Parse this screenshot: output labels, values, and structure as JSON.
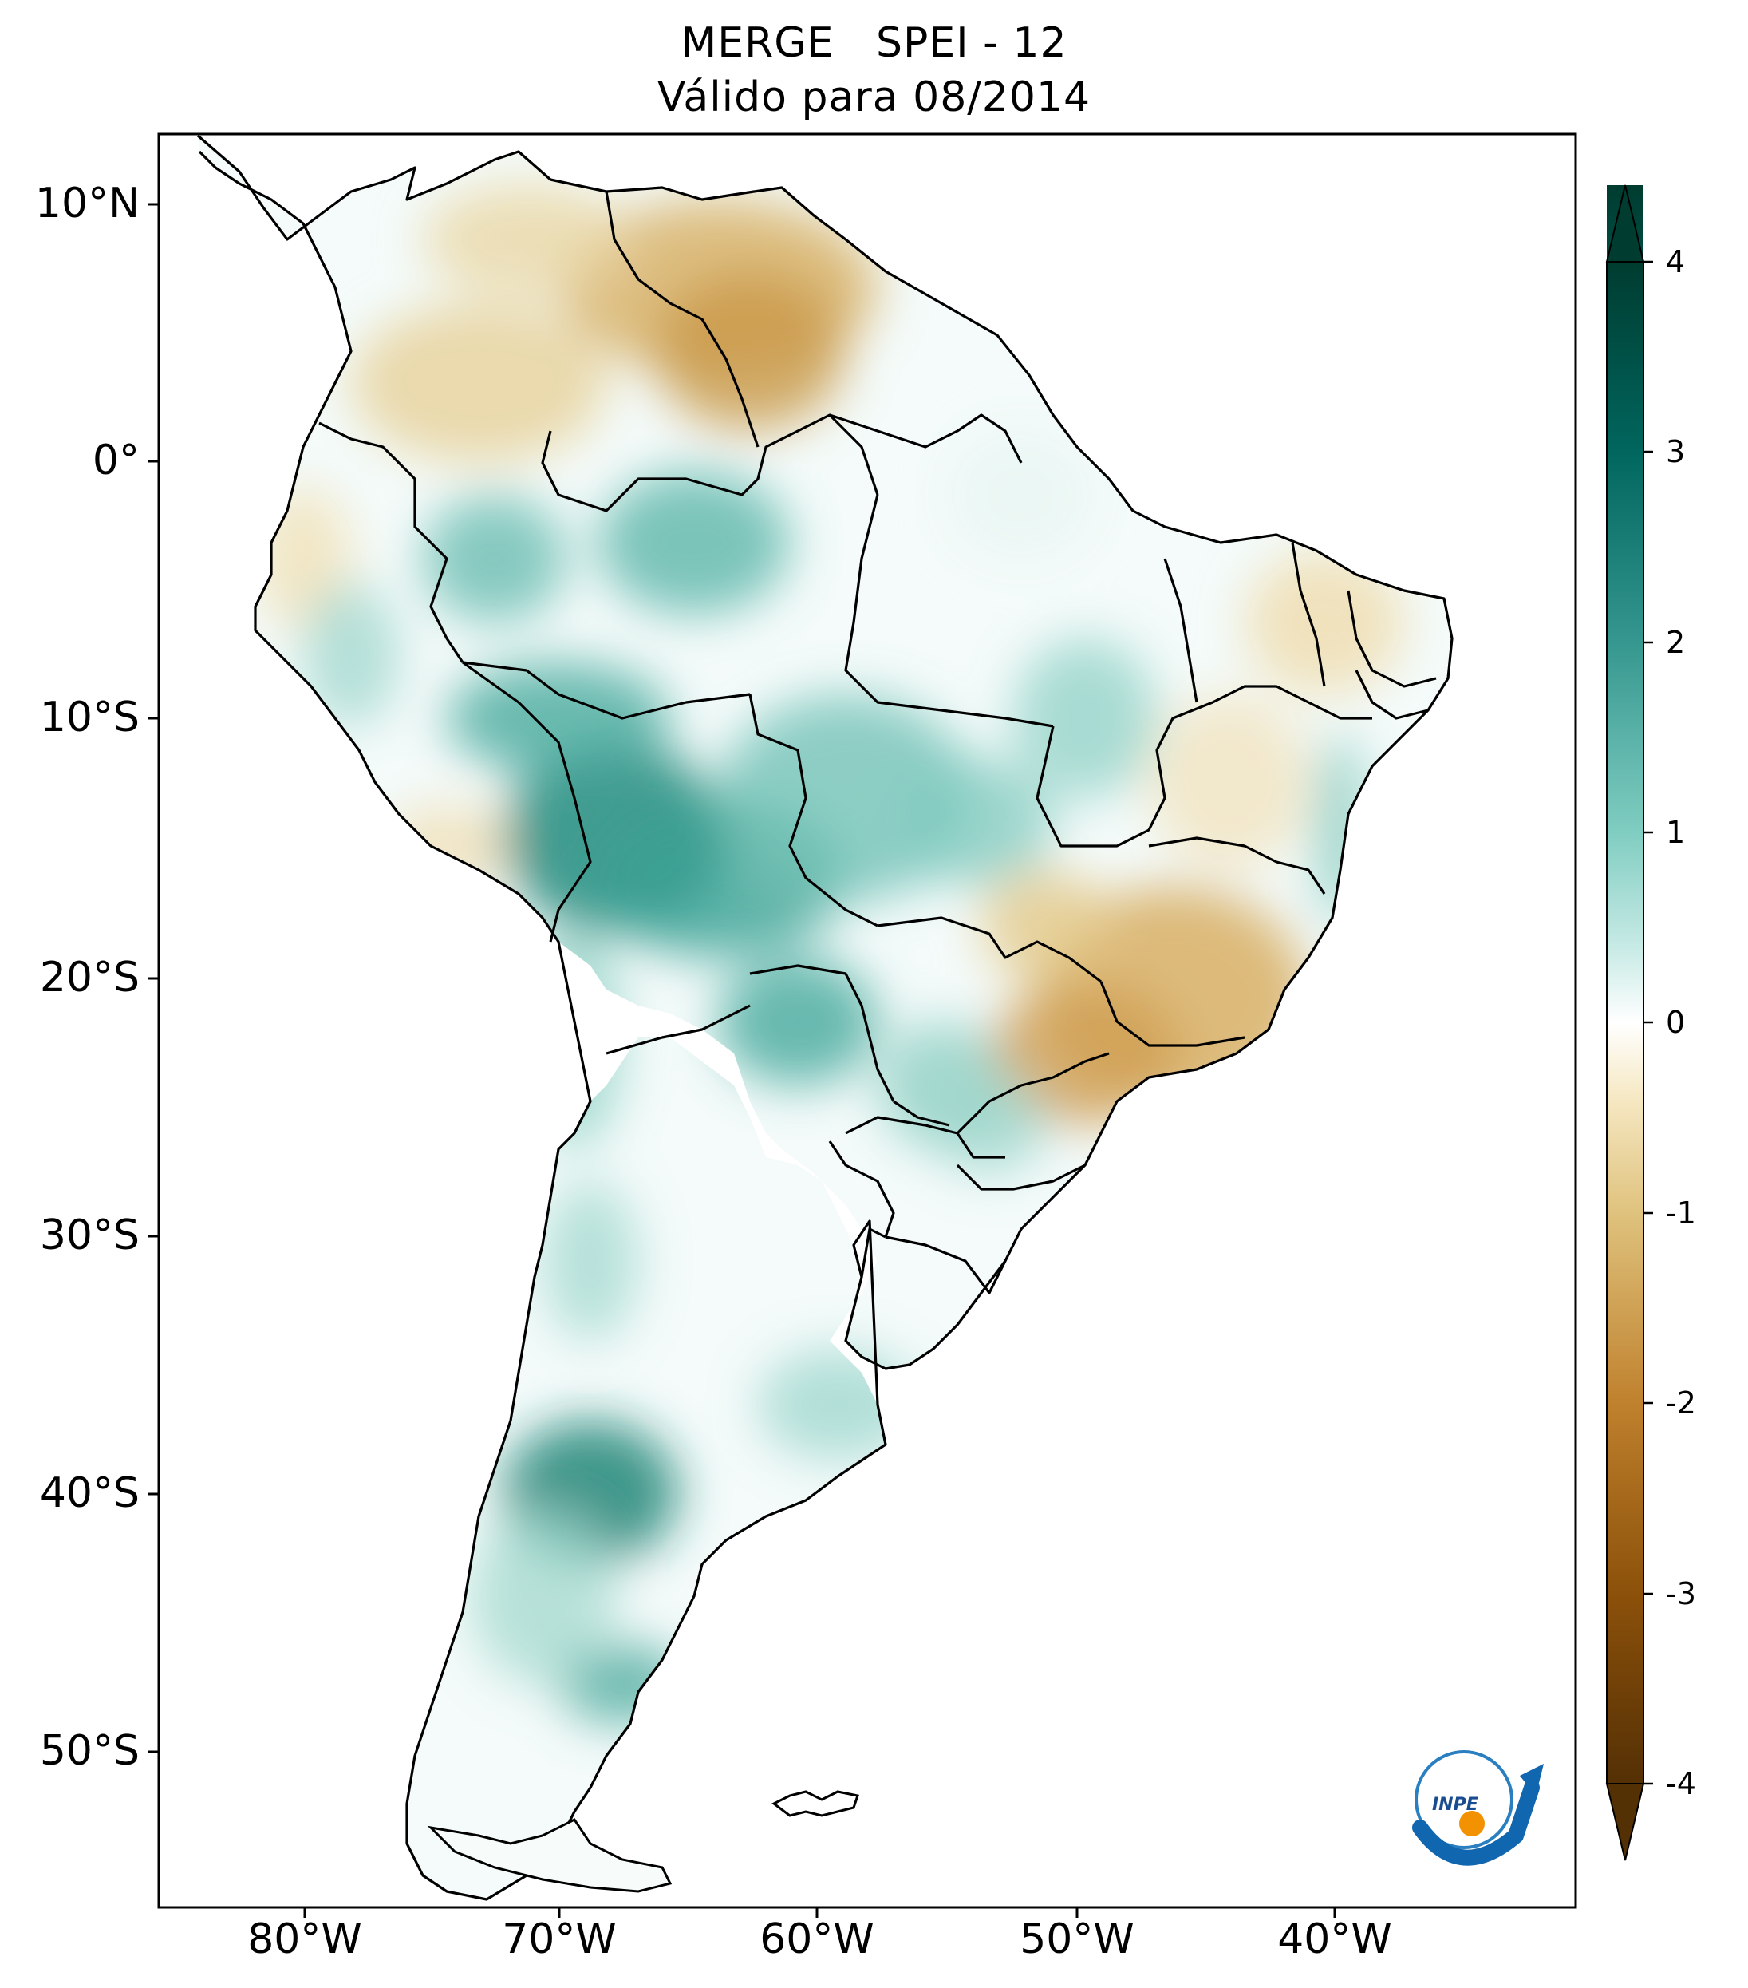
{
  "title": {
    "line1": "MERGE   SPEI - 12",
    "line2": "Válido para 08/2014"
  },
  "axes": {
    "lat_labels": [
      "10°N",
      "0°",
      "10°S",
      "20°S",
      "30°S",
      "40°S",
      "50°S"
    ],
    "lon_labels": [
      "80°W",
      "70°W",
      "60°W",
      "50°W",
      "40°W"
    ]
  },
  "colorbar": {
    "ticks": [
      "4",
      "3",
      "2",
      "1",
      "0",
      "-1",
      "-2",
      "-3",
      "-4"
    ],
    "palette": "BrBG",
    "extend": "both",
    "colors": {
      "wet_max": "#01443a",
      "wet_mid": "#35978f",
      "wet_low": "#c7eae5",
      "neutral": "#ffffff",
      "dry_low": "#f6e8c3",
      "dry_mid": "#bf812d",
      "dry_max": "#543005"
    }
  },
  "logo": {
    "text": "INPE"
  },
  "map": {
    "region": "South America",
    "variable": "SPEI-12",
    "dry_regions": [
      "Venezuela",
      "Colombia",
      "Southeast Brazil",
      "Northeast Brazil coast"
    ],
    "wet_regions": [
      "Bolivia",
      "Western Amazon",
      "Central Brazil",
      "Patagonia",
      "Paraguay"
    ]
  }
}
